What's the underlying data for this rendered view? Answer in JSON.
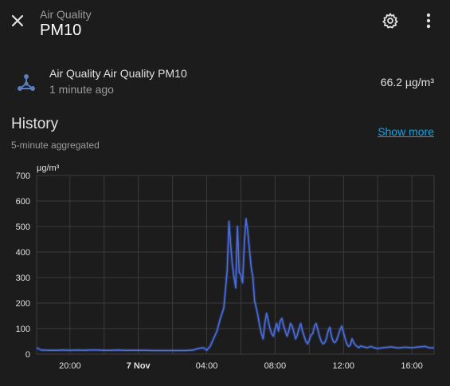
{
  "header": {
    "breadcrumb": "Air Quality",
    "title": "PM10"
  },
  "entity": {
    "name": "Air Quality Air Quality PM10",
    "last_changed": "1 minute ago",
    "state": "66.2 µg/m³"
  },
  "history": {
    "title": "History",
    "subtitle": "5-minute aggregated",
    "show_more_label": "Show more"
  },
  "colors": {
    "background": "#1c1c1c",
    "series": "#4a6ee0",
    "link": "#03a9f4",
    "grid": "#3b3b3b"
  },
  "chart_data": {
    "type": "line",
    "title": "",
    "ylabel": "µg/m³",
    "xlabel": "",
    "ylim": [
      0,
      700
    ],
    "yticks": [
      0,
      100,
      200,
      300,
      400,
      500,
      600,
      700
    ],
    "xticks": [
      {
        "t": 20,
        "label": "20:00",
        "bold": false
      },
      {
        "t": 24,
        "label": "7 Nov",
        "bold": true
      },
      {
        "t": 28,
        "label": "04:00",
        "bold": false
      },
      {
        "t": 32,
        "label": "08:00",
        "bold": false
      },
      {
        "t": 36,
        "label": "12:00",
        "bold": false
      },
      {
        "t": 40,
        "label": "16:00",
        "bold": false
      }
    ],
    "xlim": [
      18.05,
      41.3
    ],
    "grid": true,
    "series": [
      {
        "name": "",
        "points": [
          [
            18.05,
            25
          ],
          [
            18.3,
            16
          ],
          [
            18.8,
            15
          ],
          [
            19.2,
            15
          ],
          [
            19.6,
            16
          ],
          [
            20.0,
            15
          ],
          [
            20.4,
            16
          ],
          [
            20.8,
            15
          ],
          [
            21.2,
            16
          ],
          [
            21.6,
            16
          ],
          [
            22.0,
            15
          ],
          [
            22.4,
            15
          ],
          [
            22.8,
            16
          ],
          [
            23.2,
            15
          ],
          [
            23.6,
            15
          ],
          [
            24.0,
            15
          ],
          [
            24.4,
            15
          ],
          [
            24.8,
            14
          ],
          [
            25.2,
            14
          ],
          [
            25.6,
            14
          ],
          [
            26.0,
            14
          ],
          [
            26.4,
            14
          ],
          [
            26.8,
            14
          ],
          [
            27.2,
            16
          ],
          [
            27.5,
            22
          ],
          [
            27.8,
            25
          ],
          [
            28.0,
            15
          ],
          [
            28.2,
            30
          ],
          [
            28.4,
            60
          ],
          [
            28.6,
            90
          ],
          [
            28.8,
            140
          ],
          [
            29.0,
            180
          ],
          [
            29.2,
            330
          ],
          [
            29.3,
            520
          ],
          [
            29.4,
            430
          ],
          [
            29.5,
            350
          ],
          [
            29.6,
            300
          ],
          [
            29.7,
            260
          ],
          [
            29.75,
            400
          ],
          [
            29.8,
            500
          ],
          [
            29.9,
            320
          ],
          [
            30.0,
            310
          ],
          [
            30.1,
            280
          ],
          [
            30.2,
            440
          ],
          [
            30.3,
            530
          ],
          [
            30.4,
            480
          ],
          [
            30.5,
            410
          ],
          [
            30.6,
            340
          ],
          [
            30.7,
            300
          ],
          [
            30.8,
            210
          ],
          [
            30.9,
            180
          ],
          [
            31.0,
            150
          ],
          [
            31.1,
            110
          ],
          [
            31.2,
            80
          ],
          [
            31.3,
            60
          ],
          [
            31.4,
            120
          ],
          [
            31.5,
            160
          ],
          [
            31.6,
            130
          ],
          [
            31.7,
            100
          ],
          [
            31.8,
            80
          ],
          [
            31.9,
            70
          ],
          [
            32.0,
            100
          ],
          [
            32.1,
            120
          ],
          [
            32.2,
            90
          ],
          [
            32.3,
            130
          ],
          [
            32.4,
            140
          ],
          [
            32.5,
            110
          ],
          [
            32.6,
            90
          ],
          [
            32.7,
            70
          ],
          [
            32.8,
            90
          ],
          [
            32.9,
            120
          ],
          [
            33.0,
            110
          ],
          [
            33.1,
            85
          ],
          [
            33.2,
            60
          ],
          [
            33.3,
            75
          ],
          [
            33.4,
            100
          ],
          [
            33.5,
            120
          ],
          [
            33.6,
            90
          ],
          [
            33.7,
            70
          ],
          [
            33.8,
            50
          ],
          [
            33.9,
            40
          ],
          [
            34.0,
            55
          ],
          [
            34.1,
            75
          ],
          [
            34.2,
            80
          ],
          [
            34.3,
            110
          ],
          [
            34.4,
            120
          ],
          [
            34.5,
            95
          ],
          [
            34.6,
            70
          ],
          [
            34.7,
            50
          ],
          [
            34.8,
            40
          ],
          [
            34.9,
            45
          ],
          [
            35.0,
            60
          ],
          [
            35.1,
            90
          ],
          [
            35.2,
            105
          ],
          [
            35.3,
            70
          ],
          [
            35.4,
            50
          ],
          [
            35.5,
            45
          ],
          [
            35.6,
            55
          ],
          [
            35.7,
            75
          ],
          [
            35.8,
            95
          ],
          [
            35.9,
            110
          ],
          [
            36.0,
            85
          ],
          [
            36.1,
            60
          ],
          [
            36.2,
            40
          ],
          [
            36.3,
            30
          ],
          [
            36.4,
            35
          ],
          [
            36.5,
            60
          ],
          [
            36.6,
            45
          ],
          [
            36.7,
            35
          ],
          [
            36.8,
            30
          ],
          [
            36.9,
            25
          ],
          [
            37.0,
            32
          ],
          [
            37.2,
            28
          ],
          [
            37.4,
            25
          ],
          [
            37.6,
            30
          ],
          [
            37.8,
            25
          ],
          [
            38.0,
            22
          ],
          [
            38.4,
            26
          ],
          [
            38.8,
            28
          ],
          [
            39.2,
            24
          ],
          [
            39.6,
            27
          ],
          [
            40.0,
            25
          ],
          [
            40.4,
            28
          ],
          [
            40.8,
            30
          ],
          [
            41.0,
            25
          ],
          [
            41.3,
            24
          ]
        ]
      }
    ]
  }
}
